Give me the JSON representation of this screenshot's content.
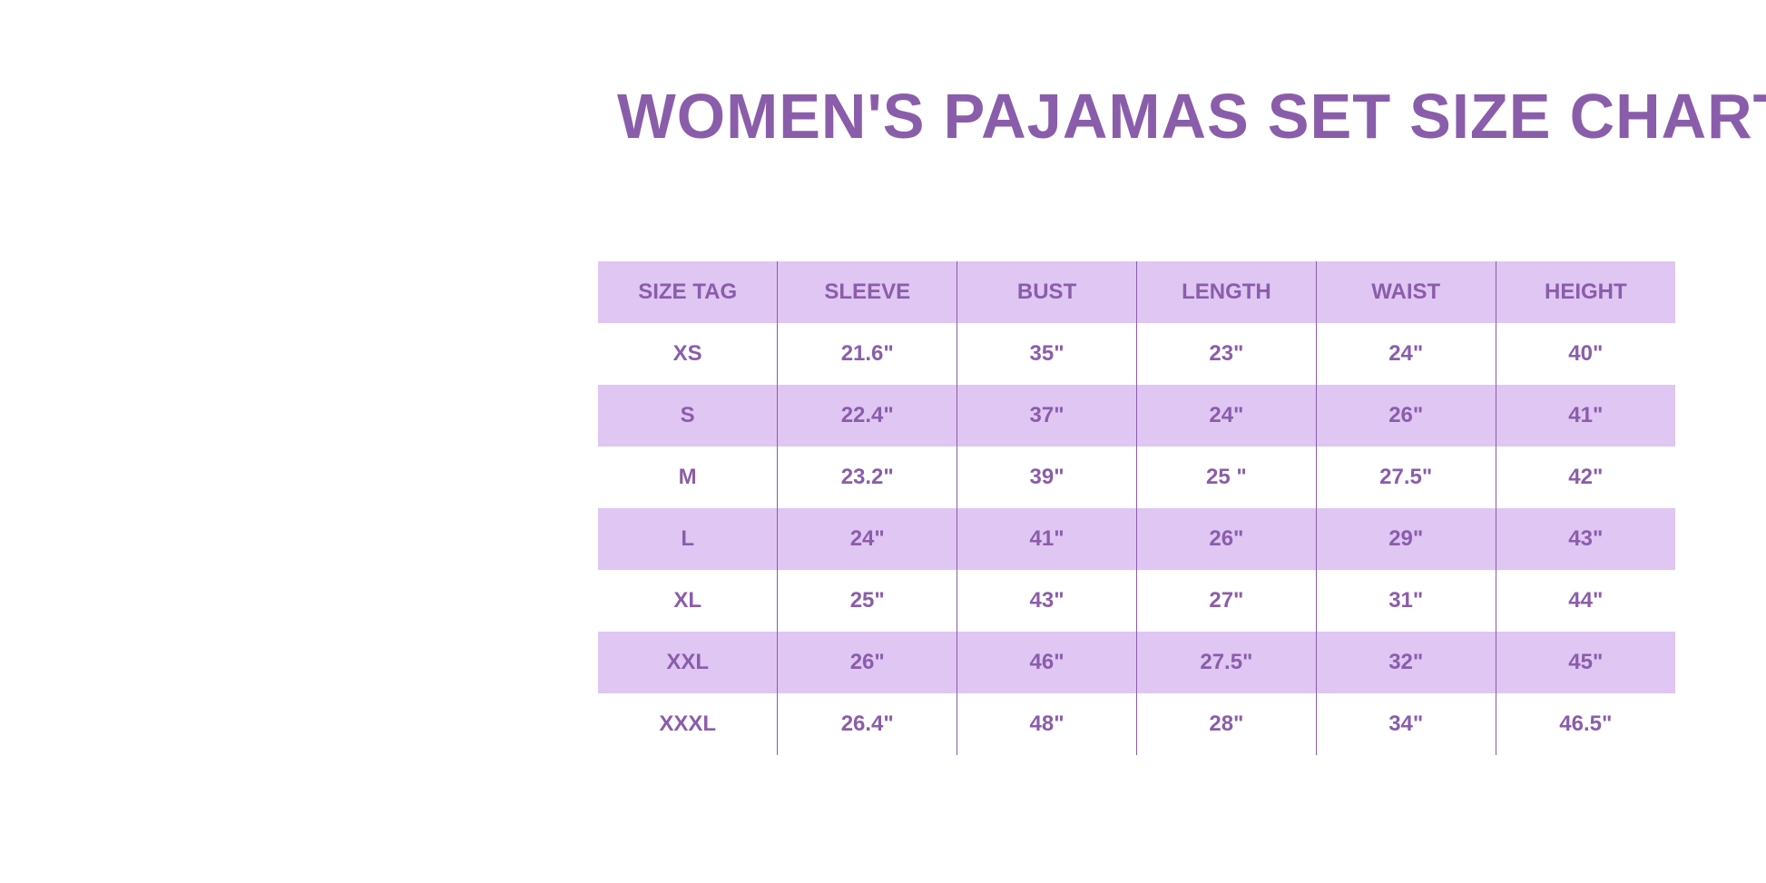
{
  "title": "WOMEN'S PAJAMAS SET SIZE CHART",
  "colors": {
    "text": "#8a5dab",
    "band": "#e0c6f3",
    "background": "#ffffff"
  },
  "table": {
    "headers": [
      "SIZE TAG",
      "SLEEVE",
      "BUST",
      "LENGTH",
      "WAIST",
      "HEIGHT"
    ],
    "rows": [
      [
        "XS",
        "21.6\"",
        "35\"",
        "23\"",
        "24\"",
        "40\""
      ],
      [
        "S",
        "22.4\"",
        "37\"",
        "24\"",
        "26\"",
        "41\""
      ],
      [
        "M",
        "23.2\"",
        "39\"",
        "25 \"",
        "27.5\"",
        "42\""
      ],
      [
        "L",
        "24\"",
        "41\"",
        "26\"",
        "29\"",
        "43\""
      ],
      [
        "XL",
        "25\"",
        "43\"",
        "27\"",
        "31\"",
        "44\""
      ],
      [
        "XXL",
        "26\"",
        "46\"",
        "27.5\"",
        "32\"",
        "45\""
      ],
      [
        "XXXL",
        "26.4\"",
        "48\"",
        "28\"",
        "34\"",
        "46.5\""
      ]
    ]
  }
}
